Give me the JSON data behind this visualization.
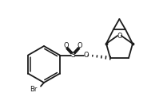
{
  "bg_color": "#ffffff",
  "line_color": "#1a1a1a",
  "line_width": 1.3,
  "figsize": [
    2.05,
    1.41
  ],
  "dpi": 100,
  "br_label": "Br",
  "s_label": "S",
  "o_label": "O"
}
